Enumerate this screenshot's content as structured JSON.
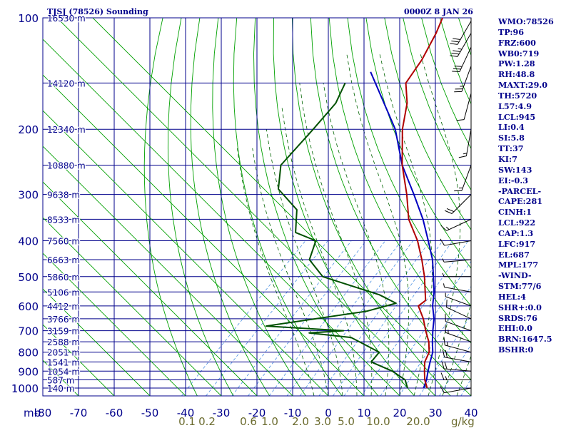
{
  "header": {
    "station": "TJSJ (78526) Sounding",
    "time": "0000Z  8 JAN 26"
  },
  "indices": [
    "WMO:78526",
    "TP:96",
    "FRZ:600",
    "WB0:719",
    "PW:1.28",
    "RH:48.8",
    "MAXT:29.0",
    "TH:5720",
    "L57:4.9",
    "LCL:945",
    "LI:0.4",
    "SI:5.8",
    "TT:37",
    "KI:7",
    "SW:143",
    "EI:-0.3",
    "-PARCEL-",
    "CAPE:281",
    "CINH:1",
    "LCL:922",
    "CAP:1.3",
    "LFC:917",
    "EL:687",
    "MPL:177",
    "-WIND-",
    "STM:77/6",
    "HEL:4",
    "SHR+:0.0",
    "SRDS:76",
    "EHI:0.0",
    "BRN:1647.5",
    "BSHR:0"
  ],
  "colors": {
    "grid": "#00008b",
    "dry_adiabat": "#00a000",
    "moist_adiabat": "#006400",
    "mixing_ratio": "#4a90e2",
    "temperature": "#b00000",
    "dewpoint": "#005000",
    "parcel": "#0000c0",
    "wind": "#000000"
  },
  "chart_data": {
    "type": "skew-t",
    "xlabel": "",
    "ylabel": "mb",
    "pressure_levels": [
      100,
      200,
      300,
      400,
      500,
      600,
      700,
      800,
      900,
      1000
    ],
    "pressure_tick_labels": [
      "100",
      "200",
      "300",
      "400",
      "500",
      "600",
      "700",
      "800",
      "900",
      "1000"
    ],
    "temperature_ticks": [
      -80,
      -70,
      -60,
      -50,
      -40,
      -30,
      -20,
      -10,
      0,
      10,
      20,
      30,
      40
    ],
    "temperature_tick_labels": [
      "-80",
      "-70",
      "-60",
      "-50",
      "-40",
      "-30",
      "-20",
      "-10",
      "0",
      "10",
      "20",
      "30",
      "40"
    ],
    "mixing_ratio_labels": [
      "0.1",
      "0.2",
      "0.6",
      "1.0",
      "2.0",
      "3.0",
      "5.0",
      "10.0",
      "20.0"
    ],
    "mixing_ratio_unit": "g/kg",
    "height_labels": [
      {
        "p": 100,
        "text": "16530 m"
      },
      {
        "p": 150,
        "text": "14120 m"
      },
      {
        "p": 200,
        "text": "12340 m"
      },
      {
        "p": 250,
        "text": "10880 m"
      },
      {
        "p": 300,
        "text": "9638 m"
      },
      {
        "p": 350,
        "text": "8533 m"
      },
      {
        "p": 400,
        "text": "7560 m"
      },
      {
        "p": 450,
        "text": "6663 m"
      },
      {
        "p": 500,
        "text": "5860 m"
      },
      {
        "p": 550,
        "text": "5106 m"
      },
      {
        "p": 600,
        "text": "4412 m"
      },
      {
        "p": 650,
        "text": "3766 m"
      },
      {
        "p": 700,
        "text": "3159 m"
      },
      {
        "p": 750,
        "text": "2588 m"
      },
      {
        "p": 800,
        "text": "2051 m"
      },
      {
        "p": 850,
        "text": "1541 m"
      },
      {
        "p": 900,
        "text": "1054 m"
      },
      {
        "p": 950,
        "text": "587 m"
      },
      {
        "p": 1000,
        "text": "140 m"
      }
    ],
    "temperature_profile": [
      [
        100,
        -74
      ],
      [
        110,
        -71.5
      ],
      [
        130,
        -68
      ],
      [
        150,
        -66
      ],
      [
        170,
        -60
      ],
      [
        200,
        -54
      ],
      [
        250,
        -44
      ],
      [
        300,
        -34.5
      ],
      [
        350,
        -27
      ],
      [
        400,
        -18.5
      ],
      [
        450,
        -12
      ],
      [
        500,
        -6.5
      ],
      [
        550,
        -2
      ],
      [
        580,
        0.5
      ],
      [
        600,
        0
      ],
      [
        650,
        5
      ],
      [
        700,
        9
      ],
      [
        750,
        13
      ],
      [
        800,
        16
      ],
      [
        850,
        17.5
      ],
      [
        900,
        20
      ],
      [
        950,
        22.5
      ],
      [
        1000,
        25.5
      ]
    ],
    "dewpoint_profile": [
      [
        150,
        -83
      ],
      [
        170,
        -80
      ],
      [
        200,
        -79
      ],
      [
        250,
        -78
      ],
      [
        290,
        -72
      ],
      [
        330,
        -61
      ],
      [
        380,
        -55
      ],
      [
        400,
        -47
      ],
      [
        450,
        -43.5
      ],
      [
        500,
        -35
      ],
      [
        560,
        -14
      ],
      [
        590,
        -7
      ],
      [
        620,
        -13
      ],
      [
        680,
        -37
      ],
      [
        700,
        -14
      ],
      [
        710,
        -23
      ],
      [
        730,
        -10
      ],
      [
        770,
        -3
      ],
      [
        800,
        2
      ],
      [
        850,
        2.5
      ],
      [
        900,
        11
      ],
      [
        950,
        17
      ],
      [
        1000,
        20
      ]
    ],
    "parcel_profile": [
      [
        140,
        -79
      ],
      [
        200,
        -56
      ],
      [
        250,
        -44
      ],
      [
        300,
        -32.5
      ],
      [
        350,
        -23
      ],
      [
        400,
        -15.5
      ],
      [
        450,
        -9
      ],
      [
        500,
        -4
      ],
      [
        550,
        0.5
      ],
      [
        600,
        4
      ],
      [
        650,
        8
      ],
      [
        700,
        11
      ],
      [
        750,
        14
      ],
      [
        800,
        17
      ],
      [
        850,
        19
      ],
      [
        900,
        21
      ],
      [
        950,
        23
      ],
      [
        1000,
        24.5
      ]
    ],
    "wind_barbs": [
      [
        102,
        30,
        28
      ],
      [
        110,
        30,
        33
      ],
      [
        120,
        25,
        28
      ],
      [
        135,
        20,
        25
      ],
      [
        160,
        15,
        10
      ],
      [
        200,
        10,
        13
      ],
      [
        250,
        20,
        15
      ],
      [
        300,
        45,
        19
      ],
      [
        350,
        65,
        14
      ],
      [
        400,
        80,
        10
      ],
      [
        450,
        85,
        7
      ],
      [
        500,
        90,
        4
      ],
      [
        550,
        100,
        5
      ],
      [
        600,
        110,
        7
      ],
      [
        650,
        115,
        9
      ],
      [
        700,
        110,
        10
      ],
      [
        750,
        110,
        13
      ],
      [
        800,
        105,
        15
      ],
      [
        850,
        100,
        18
      ],
      [
        900,
        95,
        20
      ],
      [
        950,
        90,
        17
      ],
      [
        1000,
        80,
        12
      ]
    ]
  }
}
